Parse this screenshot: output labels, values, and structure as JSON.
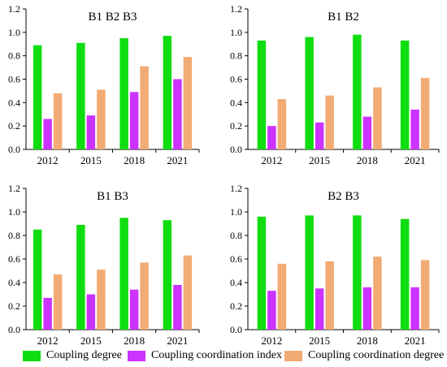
{
  "legend": {
    "coupling_degree": "Coupling degree",
    "coordination_index": "Coupling coordination index",
    "coordination_degree": "Coupling coordination degree"
  },
  "colors": {
    "coupling_degree": "#10dd10",
    "coordination_index": "#cc33ff",
    "coordination_degree": "#f2ab74",
    "axis": "#000000"
  },
  "chart_data": [
    {
      "type": "bar",
      "title": "B1 B2 B3",
      "categories": [
        "2012",
        "2015",
        "2018",
        "2021"
      ],
      "ylim": [
        0,
        1.2
      ],
      "yticks": [
        "0.0",
        "0.2",
        "0.4",
        "0.6",
        "0.8",
        "1.0",
        "1.2"
      ],
      "grid": false,
      "series": [
        {
          "name": "Coupling degree",
          "values": [
            0.89,
            0.91,
            0.95,
            0.97
          ]
        },
        {
          "name": "Coupling coordination index",
          "values": [
            0.26,
            0.29,
            0.49,
            0.6
          ]
        },
        {
          "name": "Coupling coordination degree",
          "values": [
            0.48,
            0.51,
            0.71,
            0.79
          ]
        }
      ]
    },
    {
      "type": "bar",
      "title": "B1 B2",
      "categories": [
        "2012",
        "2015",
        "2018",
        "2021"
      ],
      "ylim": [
        0,
        1.2
      ],
      "yticks": [
        "0.0",
        "0.2",
        "0.4",
        "0.6",
        "0.8",
        "1.0",
        "1.2"
      ],
      "grid": false,
      "series": [
        {
          "name": "Coupling degree",
          "values": [
            0.93,
            0.96,
            0.98,
            0.93
          ]
        },
        {
          "name": "Coupling coordination index",
          "values": [
            0.2,
            0.23,
            0.28,
            0.34
          ]
        },
        {
          "name": "Coupling coordination degree",
          "values": [
            0.43,
            0.46,
            0.53,
            0.61
          ]
        }
      ]
    },
    {
      "type": "bar",
      "title": "B1 B3",
      "categories": [
        "2012",
        "2015",
        "2018",
        "2021"
      ],
      "ylim": [
        0,
        1.2
      ],
      "yticks": [
        "0.0",
        "0.2",
        "0.4",
        "0.6",
        "0.8",
        "1.0",
        "1.2"
      ],
      "grid": false,
      "series": [
        {
          "name": "Coupling degree",
          "values": [
            0.85,
            0.89,
            0.95,
            0.93
          ]
        },
        {
          "name": "Coupling coordination index",
          "values": [
            0.27,
            0.3,
            0.34,
            0.38
          ]
        },
        {
          "name": "Coupling coordination degree",
          "values": [
            0.47,
            0.51,
            0.57,
            0.63
          ]
        }
      ]
    },
    {
      "type": "bar",
      "title": "B2 B3",
      "categories": [
        "2012",
        "2015",
        "2018",
        "2021"
      ],
      "ylim": [
        0,
        1.2
      ],
      "yticks": [
        "0.0",
        "0.2",
        "0.4",
        "0.6",
        "0.8",
        "1.0",
        "1.2"
      ],
      "grid": false,
      "series": [
        {
          "name": "Coupling degree",
          "values": [
            0.96,
            0.97,
            0.97,
            0.94
          ]
        },
        {
          "name": "Coupling coordination index",
          "values": [
            0.33,
            0.35,
            0.36,
            0.36
          ]
        },
        {
          "name": "Coupling coordination degree",
          "values": [
            0.56,
            0.58,
            0.62,
            0.59
          ]
        }
      ]
    }
  ]
}
